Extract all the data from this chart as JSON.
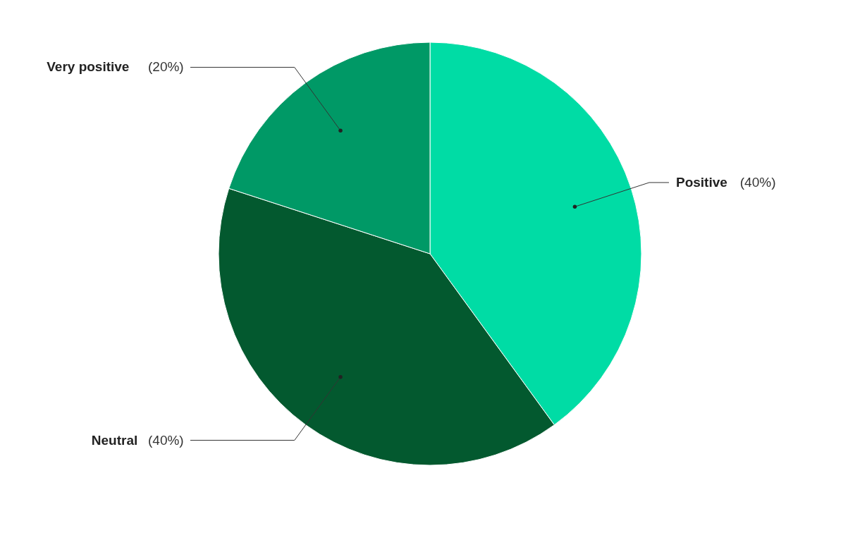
{
  "chart_data": {
    "type": "pie",
    "categories": [
      "Positive",
      "Neutral",
      "Very positive"
    ],
    "values": [
      40,
      40,
      20
    ],
    "value_labels": [
      "(40%)",
      "(40%)",
      "(20%)"
    ],
    "colors": [
      "#00dca5",
      "#03592f",
      "#009966"
    ]
  }
}
